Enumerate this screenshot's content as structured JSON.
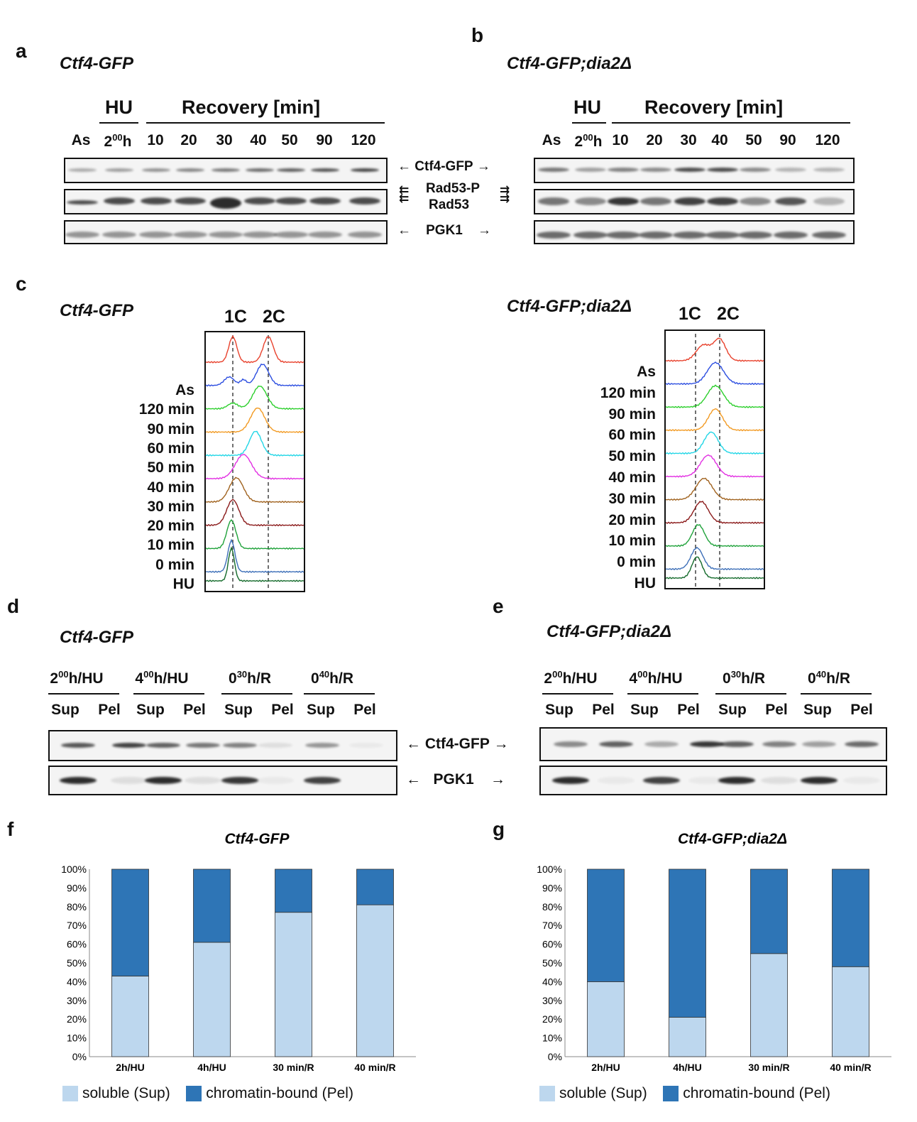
{
  "panels": {
    "a": {
      "label": "a",
      "title": "Ctf4-GFP",
      "hu": "HU",
      "recovery": "Recovery [min]",
      "lanes": [
        "As",
        "2",
        "10",
        "20",
        "30",
        "40",
        "50",
        "90",
        "120"
      ]
    },
    "b": {
      "label": "b",
      "title": "Ctf4-GFP;dia2Δ",
      "hu": "HU",
      "recovery": "Recovery [min]",
      "lanes": [
        "As",
        "2",
        "10",
        "20",
        "30",
        "40",
        "50",
        "90",
        "120"
      ]
    },
    "lane_hu_sup": "00",
    "lane_hu_suffix": "h",
    "blot_labels": {
      "ctf4": "Ctf4-GFP",
      "rad53p": "Rad53-P",
      "rad53": "Rad53",
      "pgk1": "PGK1"
    },
    "c": {
      "label": "c",
      "title_left": "Ctf4-GFP",
      "title_right": "Ctf4-GFP;dia2Δ",
      "c1": "1C",
      "c2": "2C",
      "times_left": [
        "As",
        "120 min",
        "90 min",
        "60 min",
        "50 min",
        "40 min",
        "30 min",
        "20 min",
        "10 min",
        "0 min",
        "HU"
      ],
      "times_right": [
        "As",
        "120 min",
        "90 min",
        "60 min",
        "50 min",
        "40 min",
        "30 min",
        "20 min",
        "10 min",
        "0 min",
        "HU"
      ],
      "colors": [
        "#e8412c",
        "#2b4de0",
        "#2ccf2c",
        "#f29a22",
        "#22d6e6",
        "#e22ee2",
        "#a0621e",
        "#8b1a1a",
        "#1fa23a",
        "#3d6fb8",
        "#136a2a"
      ]
    },
    "d": {
      "label": "d",
      "title": "Ctf4-GFP",
      "groups": [
        {
          "main": "2",
          "sup": "00",
          "rest": "h/HU"
        },
        {
          "main": "4",
          "sup": "00",
          "rest": "h/HU"
        },
        {
          "main": "0",
          "sup": "30",
          "rest": "h/R"
        },
        {
          "main": "0",
          "sup": "40",
          "rest": "h/R"
        }
      ],
      "sub": [
        "Sup",
        "Pel"
      ]
    },
    "e": {
      "label": "e",
      "title": "Ctf4-GFP;dia2Δ",
      "groups": [
        {
          "main": "2",
          "sup": "00",
          "rest": "h/HU"
        },
        {
          "main": "4",
          "sup": "00",
          "rest": "h/HU"
        },
        {
          "main": "0",
          "sup": "30",
          "rest": "h/R"
        },
        {
          "main": "0",
          "sup": "40",
          "rest": "h/R"
        }
      ],
      "sub": [
        "Sup",
        "Pel"
      ]
    },
    "f": {
      "label": "f",
      "title": "Ctf4-GFP"
    },
    "g": {
      "label": "g",
      "title": "Ctf4-GFP;dia2Δ"
    },
    "legend": {
      "sup": "soluble (Sup)",
      "pel": "chromatin-bound (Pel)",
      "sup_color": "#bdd7ee",
      "pel_color": "#2e75b6"
    }
  },
  "chart_data": [
    {
      "type": "bar",
      "stacked": true,
      "title": "Ctf4-GFP",
      "categories": [
        "2h/HU",
        "4h/HU",
        "30 min/R",
        "40 min/R"
      ],
      "series": [
        {
          "name": "soluble (Sup)",
          "values": [
            43,
            61,
            77,
            81
          ]
        },
        {
          "name": "chromatin-bound (Pel)",
          "values": [
            57,
            39,
            23,
            19
          ]
        }
      ],
      "ylim": [
        0,
        100
      ],
      "yticks": [
        "0%",
        "10%",
        "20%",
        "30%",
        "40%",
        "50%",
        "60%",
        "70%",
        "80%",
        "90%",
        "100%"
      ]
    },
    {
      "type": "bar",
      "stacked": true,
      "title": "Ctf4-GFP;dia2Δ",
      "categories": [
        "2h/HU",
        "4h/HU",
        "30 min/R",
        "40 min/R"
      ],
      "series": [
        {
          "name": "soluble (Sup)",
          "values": [
            40,
            21,
            55,
            48
          ]
        },
        {
          "name": "chromatin-bound (Pel)",
          "values": [
            60,
            79,
            45,
            52
          ]
        }
      ],
      "ylim": [
        0,
        100
      ],
      "yticks": [
        "0%",
        "10%",
        "20%",
        "30%",
        "40%",
        "50%",
        "60%",
        "70%",
        "80%",
        "90%",
        "100%"
      ]
    }
  ]
}
